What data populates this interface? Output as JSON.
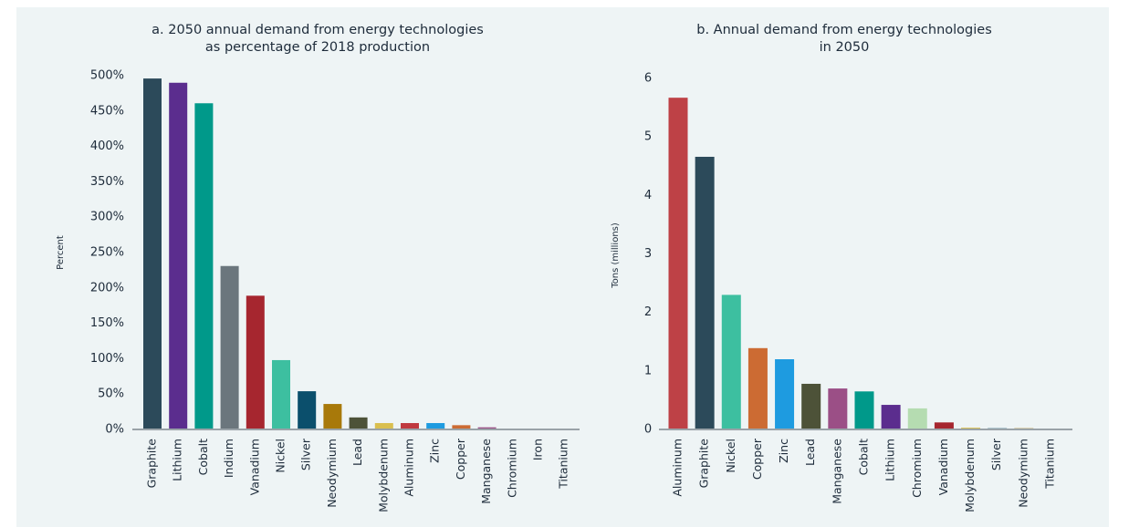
{
  "chart_data": [
    {
      "type": "bar",
      "title": [
        "a. 2050 annual demand from energy technologies",
        "as percentage of 2018 production"
      ],
      "ylabel": "Percent",
      "categories": [
        "Graphite",
        "Lithium",
        "Cobalt",
        "Indium",
        "Vanadium",
        "Nickel",
        "Silver",
        "Neodymium",
        "Lead",
        "Molybdenum",
        "Aluminum",
        "Zinc",
        "Copper",
        "Manganese",
        "Chromium",
        "Iron",
        "Titanium"
      ],
      "values": [
        496,
        490,
        461,
        231,
        189,
        98,
        54,
        36,
        17,
        9,
        9,
        9,
        6,
        3,
        1,
        1,
        1
      ],
      "colors": [
        "#2c4a5a",
        "#5b2d8e",
        "#00998a",
        "#6b767d",
        "#a6262f",
        "#3dbfa0",
        "#0b4f6c",
        "#a8790a",
        "#4d5238",
        "#d9bf4f",
        "#c0393f",
        "#1e9be0",
        "#cc6b33",
        "#9b4f86",
        "#2b5a8b",
        "#555f66",
        "#2b5a8b"
      ],
      "ylim": [
        0,
        500
      ],
      "yticks": [
        {
          "value": 0,
          "label": "0%"
        },
        {
          "value": 50,
          "label": "50%"
        },
        {
          "value": 100,
          "label": "100%"
        },
        {
          "value": 150,
          "label": "150%"
        },
        {
          "value": 200,
          "label": "200%"
        },
        {
          "value": 250,
          "label": "250%"
        },
        {
          "value": 300,
          "label": "300%"
        },
        {
          "value": 350,
          "label": "350%"
        },
        {
          "value": 400,
          "label": "400%"
        },
        {
          "value": 450,
          "label": "450%"
        },
        {
          "value": 500,
          "label": "500%"
        }
      ]
    },
    {
      "type": "bar",
      "title": [
        "b. Annual demand from energy technologies",
        "in 2050"
      ],
      "ylabel": "Tons (millions)",
      "categories": [
        "Aluminum",
        "Graphite",
        "Nickel",
        "Copper",
        "Zinc",
        "Lead",
        "Manganese",
        "Cobalt",
        "Lithium",
        "Chromium",
        "Vanadium",
        "Molybdenum",
        "Silver",
        "Neodymium",
        "Titanium"
      ],
      "values": [
        5.67,
        4.66,
        2.3,
        1.39,
        1.2,
        0.78,
        0.7,
        0.65,
        0.42,
        0.36,
        0.12,
        0.03,
        0.02,
        0.02,
        0.01
      ],
      "colors": [
        "#be4146",
        "#2c4a5a",
        "#3dbfa0",
        "#cc6b33",
        "#1e9be0",
        "#4d5238",
        "#9b4f86",
        "#00998a",
        "#5b2d8e",
        "#b5dcb1",
        "#a6262f",
        "#d9bf4f",
        "#0b4f6c",
        "#a8790a",
        "#2b5a8b"
      ],
      "ylim": [
        0,
        6
      ],
      "yticks": [
        0,
        1,
        2,
        3,
        4,
        5,
        6
      ]
    }
  ]
}
